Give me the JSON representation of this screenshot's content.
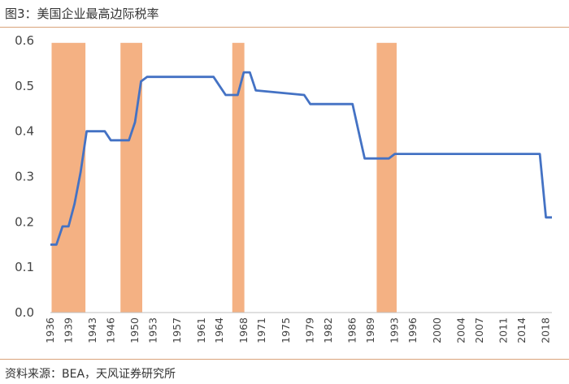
{
  "title": "图3：美国企业最高边际税率",
  "source": "资料来源：BEA，天风证券研究所",
  "colors": {
    "line": "#4472c4",
    "band": "#f4b183",
    "axis": "#bfbfbf"
  },
  "chart_data": {
    "type": "line",
    "title": "",
    "xlabel": "",
    "ylabel": "",
    "ylim": [
      0,
      0.6
    ],
    "xlim": [
      1936,
      2019
    ],
    "yticks": [
      "0.0",
      "0.1",
      "0.2",
      "0.3",
      "0.4",
      "0.5",
      "0.6"
    ],
    "xticks": [
      "1936",
      "1939",
      "1943",
      "1946",
      "1950",
      "1953",
      "1957",
      "1961",
      "1964",
      "1968",
      "1971",
      "1975",
      "1979",
      "1982",
      "1986",
      "1989",
      "1993",
      "1996",
      "2000",
      "2004",
      "2007",
      "2011",
      "2014",
      "2018"
    ],
    "shaded_periods": [
      [
        1936.2,
        1941.8
      ],
      [
        1947.6,
        1951.2
      ],
      [
        1966.1,
        1968.1
      ],
      [
        1990.0,
        1993.3
      ]
    ],
    "series": [
      {
        "x": [
          1936,
          1937,
          1938,
          1939,
          1940,
          1941,
          1942,
          1943,
          1944,
          1945,
          1946,
          1947,
          1948,
          1949,
          1950,
          1951,
          1952,
          1963,
          1964,
          1965,
          1966,
          1967,
          1968,
          1969,
          1970,
          1978,
          1979,
          1986,
          1987,
          1988,
          1991,
          1992,
          1993,
          2017,
          2018,
          2019
        ],
        "values": [
          0.15,
          0.15,
          0.19,
          0.19,
          0.24,
          0.31,
          0.4,
          0.4,
          0.4,
          0.4,
          0.38,
          0.38,
          0.38,
          0.38,
          0.42,
          0.51,
          0.52,
          0.52,
          0.5,
          0.48,
          0.48,
          0.48,
          0.53,
          0.53,
          0.49,
          0.48,
          0.46,
          0.46,
          0.4,
          0.34,
          0.34,
          0.34,
          0.35,
          0.35,
          0.21,
          0.21
        ]
      }
    ]
  }
}
